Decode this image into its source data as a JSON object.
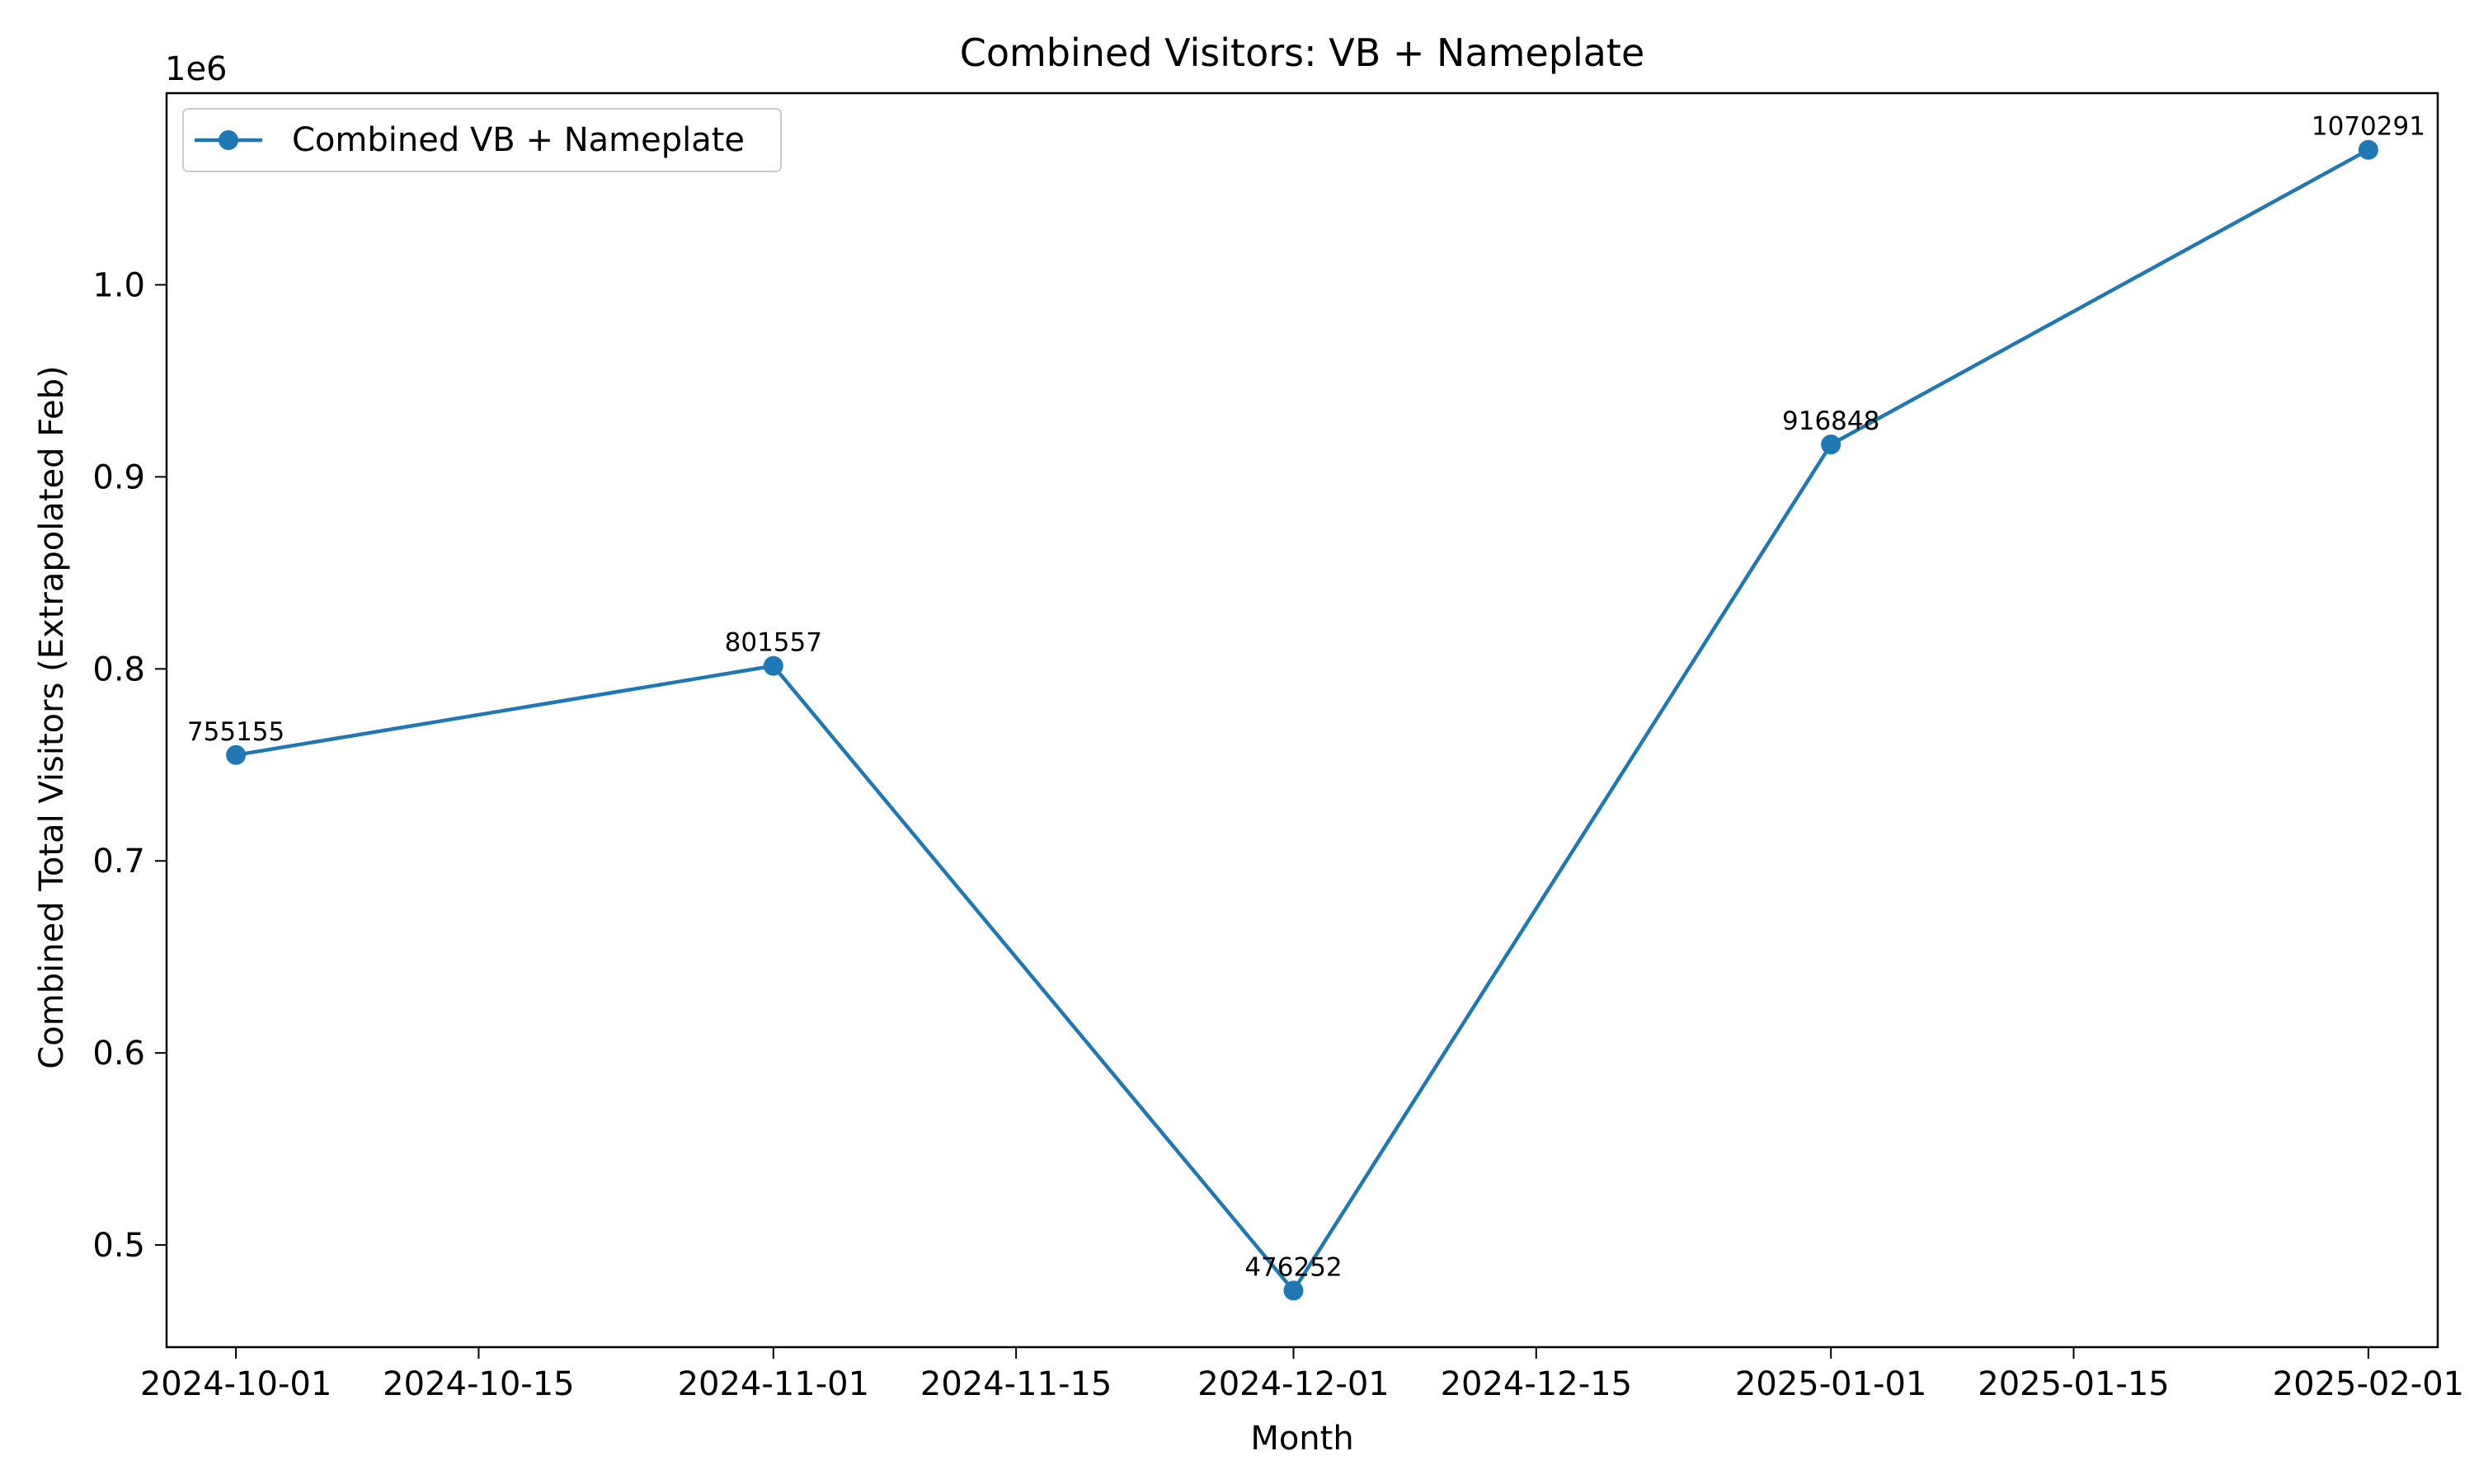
{
  "chart_data": {
    "type": "line",
    "title": "Combined Visitors: VB + Nameplate",
    "xlabel": "Month",
    "ylabel": "Combined Total Visitors (Extrapolated Feb)",
    "y_offset_label": "1e6",
    "x_axis_type": "date",
    "xlim": [
      "2024-09-27",
      "2025-02-05"
    ],
    "ylim": [
      0.4468,
      1.0998
    ],
    "y_scale_factor": 1000000,
    "x_ticks": [
      "2024-10-01",
      "2024-10-15",
      "2024-11-01",
      "2024-11-15",
      "2024-12-01",
      "2024-12-15",
      "2025-01-01",
      "2025-01-15",
      "2025-02-01"
    ],
    "y_ticks": [
      "0.5",
      "0.6",
      "0.7",
      "0.8",
      "0.9",
      "1.0"
    ],
    "grid": false,
    "legend_position": "top-left",
    "series": [
      {
        "name": "Combined VB + Nameplate",
        "color": "#1f77b4",
        "marker": "circle",
        "x": [
          "2024-10-01",
          "2024-11-01",
          "2024-12-01",
          "2025-01-01",
          "2025-02-01"
        ],
        "y": [
          755155,
          801557,
          476252,
          916848,
          1070291
        ],
        "labels": [
          "755155",
          "801557",
          "476252",
          "916848",
          "1070291"
        ]
      }
    ]
  }
}
